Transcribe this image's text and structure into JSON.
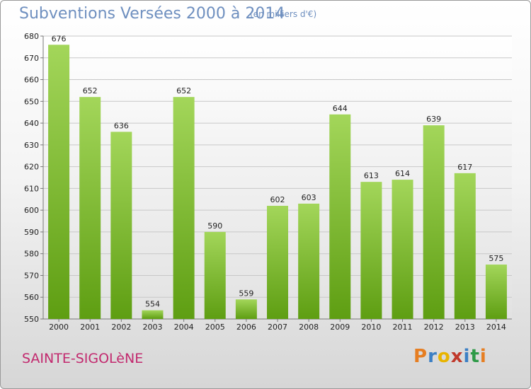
{
  "title": "Subventions Versées 2000 à 2014",
  "subtitle": "(en milliers d'€)",
  "commune": "SAINTE-SIGOLèNE",
  "logo": {
    "letters": [
      "P",
      "r",
      "o",
      "x",
      "i",
      "t",
      "i"
    ],
    "colors": [
      "#e67e22",
      "#3b7fc4",
      "#e8b400",
      "#c0392b",
      "#3b7fc4",
      "#2e9a47",
      "#e67e22"
    ]
  },
  "colors": {
    "bar_top": "#a3d65a",
    "bar_bottom": "#5e9e12",
    "title": "#6e8fbf",
    "commune": "#c2296e"
  },
  "chart_data": {
    "type": "bar",
    "title": "Subventions Versées 2000 à 2014",
    "subtitle": "(en milliers d'€)",
    "categories": [
      "2000",
      "2001",
      "2002",
      "2003",
      "2004",
      "2005",
      "2006",
      "2007",
      "2008",
      "2009",
      "2010",
      "2011",
      "2012",
      "2013",
      "2014"
    ],
    "values": [
      676,
      652,
      636,
      554,
      652,
      590,
      559,
      602,
      603,
      644,
      613,
      614,
      639,
      617,
      575
    ],
    "ylim": [
      550,
      680
    ],
    "yticks": [
      550,
      560,
      570,
      580,
      590,
      600,
      610,
      620,
      630,
      640,
      650,
      660,
      670,
      680
    ],
    "grid": true,
    "legend": "none"
  }
}
